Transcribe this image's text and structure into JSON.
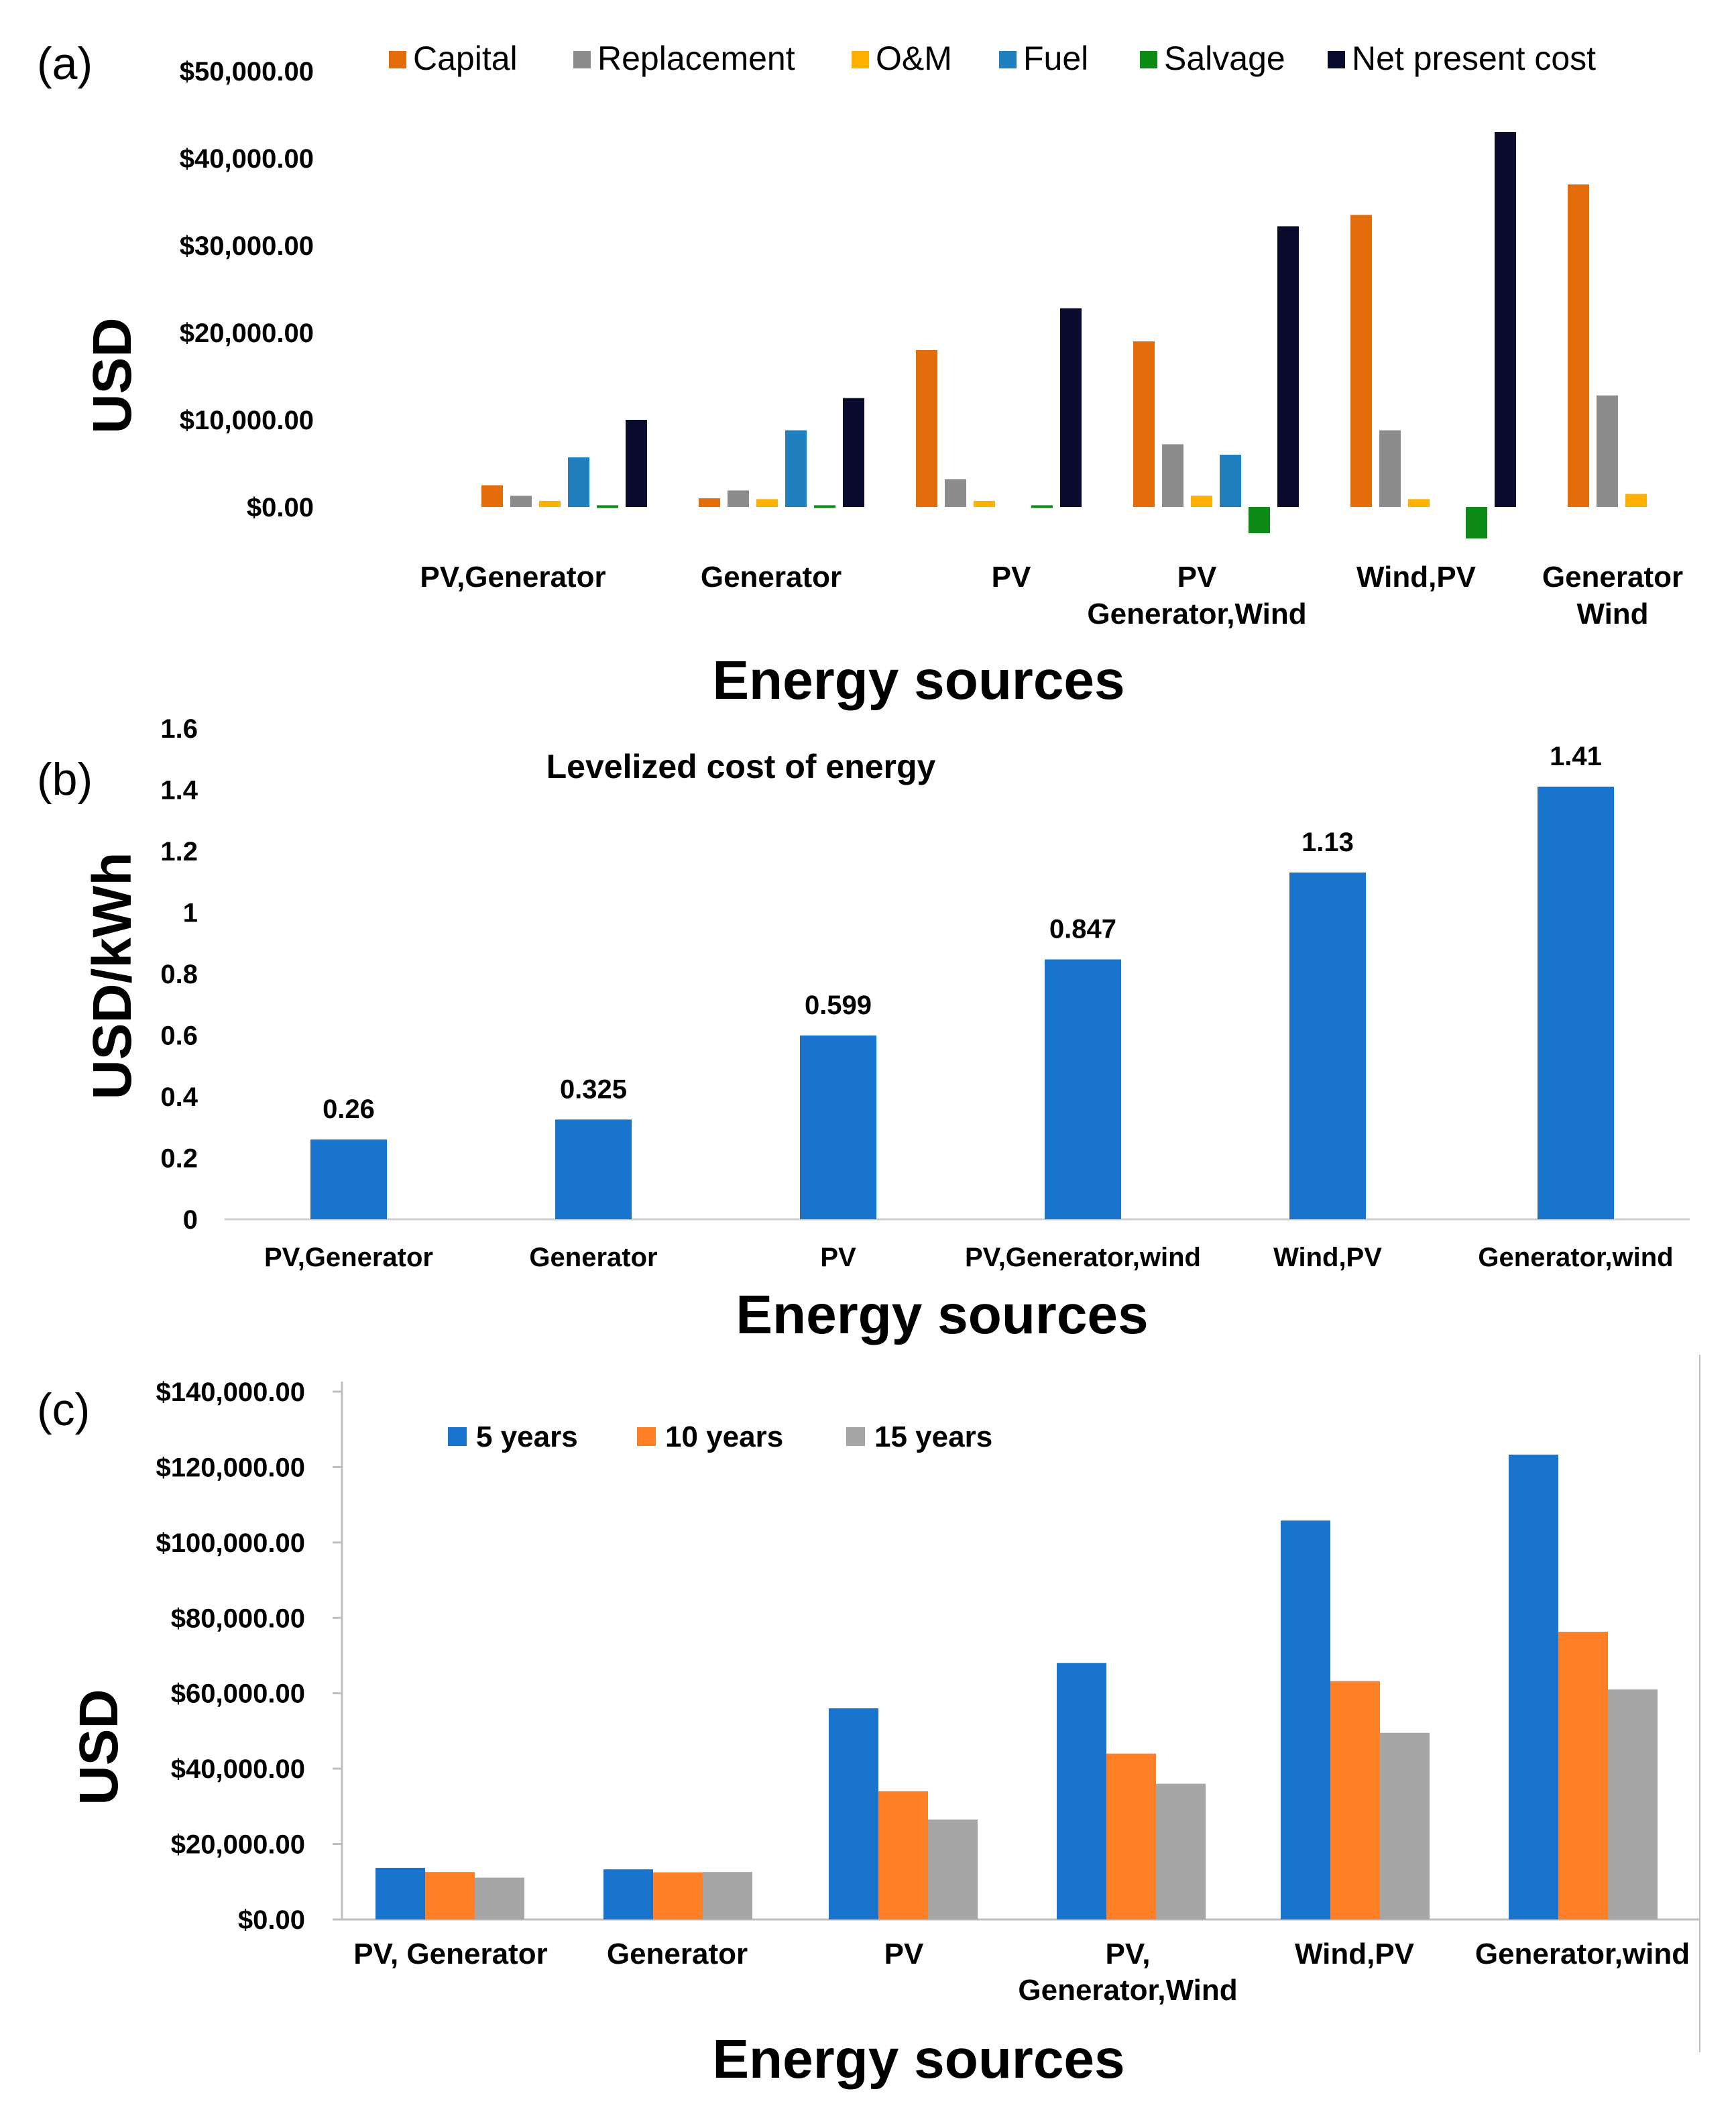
{
  "panels": {
    "a": "(a)",
    "b": "(b)",
    "c": "(c)"
  },
  "chart_data": [
    {
      "type": "bar",
      "panel": "(a)",
      "title": "",
      "xlabel": "Energy sources",
      "ylabel": "USD",
      "ylim": [
        -5000,
        50000
      ],
      "yticks": [
        "$0.00",
        "$10,000.00",
        "$20,000.00",
        "$30,000.00",
        "$40,000.00",
        "$50,000.00"
      ],
      "ytick_values": [
        0,
        10000,
        20000,
        30000,
        40000,
        50000
      ],
      "categories": [
        [
          "PV,Generator"
        ],
        [
          "Generator"
        ],
        [
          "PV"
        ],
        [
          "PV",
          "Generator,Wind"
        ],
        [
          "Wind,PV"
        ],
        [
          "Generator",
          "Wind"
        ]
      ],
      "legend_position": "top",
      "series": [
        {
          "name": "Capital",
          "color": "#E46C0A",
          "values": [
            2500,
            1000,
            18000,
            19000,
            33500,
            37000
          ]
        },
        {
          "name": "Replacement",
          "color": "#8C8C8C",
          "values": [
            1300,
            1900,
            3200,
            7200,
            8800,
            12800
          ]
        },
        {
          "name": "O&M",
          "color": "#FFB000",
          "values": [
            700,
            900,
            700,
            1300,
            900,
            1500
          ]
        },
        {
          "name": "Fuel",
          "color": "#1F7FBF",
          "values": [
            5700,
            8800,
            0,
            6000,
            0,
            0
          ]
        },
        {
          "name": "Salvage",
          "color": "#0E8A16",
          "values": [
            200,
            200,
            200,
            -3000,
            -3600,
            0
          ]
        },
        {
          "name": "Net present cost",
          "color": "#0B0B2E",
          "values": [
            10000,
            12500,
            22800,
            32200,
            43000,
            0
          ]
        }
      ]
    },
    {
      "type": "bar",
      "panel": "(b)",
      "title": "Levelized cost of energy",
      "xlabel": "Energy sources",
      "ylabel": "USD/kWh",
      "ylim": [
        0,
        1.6
      ],
      "yticks": [
        "0",
        "0.2",
        "0.4",
        "0.6",
        "0.8",
        "1",
        "1.2",
        "1.4",
        "1.6"
      ],
      "ytick_values": [
        0,
        0.2,
        0.4,
        0.6,
        0.8,
        1,
        1.2,
        1.4,
        1.6
      ],
      "categories": [
        "PV,Generator",
        "Generator",
        "PV",
        "PV,Generator,wind",
        "Wind,PV",
        "Generator,wind"
      ],
      "values": [
        0.26,
        0.325,
        0.599,
        0.847,
        1.13,
        1.41
      ],
      "value_labels": [
        "0.26",
        "0.325",
        "0.599",
        "0.847",
        "1.13",
        "1.41"
      ],
      "color": "#1874CD"
    },
    {
      "type": "bar",
      "panel": "(c)",
      "title": "",
      "xlabel": "Energy sources",
      "ylabel": "USD",
      "ylim": [
        0,
        140000
      ],
      "yticks": [
        "$0.00",
        "$20,000.00",
        "$40,000.00",
        "$60,000.00",
        "$80,000.00",
        "$100,000.00",
        "$120,000.00",
        "$140,000.00"
      ],
      "ytick_values": [
        0,
        20000,
        40000,
        60000,
        80000,
        100000,
        120000,
        140000
      ],
      "categories": [
        [
          "PV, Generator"
        ],
        [
          "Generator"
        ],
        [
          "PV"
        ],
        [
          "PV,",
          "Generator,Wind"
        ],
        [
          "Wind,PV"
        ],
        [
          "Generator,wind"
        ]
      ],
      "legend_position": "top-left",
      "series": [
        {
          "name": "5 years",
          "color": "#1874CD",
          "values": [
            13700,
            13300,
            56000,
            68000,
            105800,
            123300
          ]
        },
        {
          "name": "10 years",
          "color": "#FF7F27",
          "values": [
            12600,
            12500,
            34000,
            44000,
            63200,
            76300
          ]
        },
        {
          "name": "15 years",
          "color": "#A6A6A6",
          "values": [
            11100,
            12600,
            26500,
            36000,
            49500,
            61000
          ]
        }
      ]
    }
  ]
}
